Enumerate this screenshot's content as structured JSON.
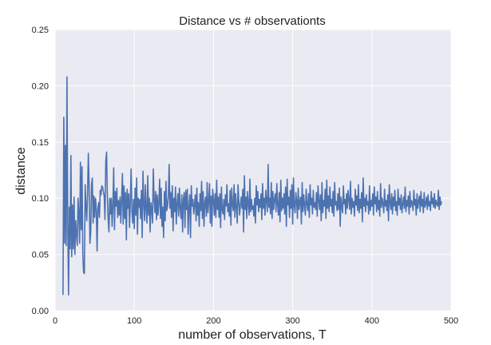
{
  "chart_data": {
    "type": "line",
    "title": "Distance vs # observationts",
    "xlabel": "number of observations, T",
    "ylabel": "distance",
    "xlim": [
      0,
      500
    ],
    "ylim": [
      0,
      0.25
    ],
    "xticks": [
      0,
      100,
      200,
      300,
      400,
      500
    ],
    "xtick_labels": [
      "0",
      "100",
      "200",
      "300",
      "400",
      "500"
    ],
    "yticks": [
      0,
      0.05,
      0.1,
      0.15,
      0.2,
      0.25
    ],
    "ytick_labels": [
      "0.00",
      "0.05",
      "0.10",
      "0.15",
      "0.20",
      "0.25"
    ],
    "grid": true,
    "background": "#eaeaf2",
    "line_color": "#4c72b0",
    "series": [
      {
        "x_start": 10,
        "x_step": 1,
        "values": [
          0.014,
          0.172,
          0.06,
          0.147,
          0.058,
          0.208,
          0.078,
          0.014,
          0.092,
          0.055,
          0.138,
          0.048,
          0.094,
          0.055,
          0.101,
          0.05,
          0.08,
          0.068,
          0.058,
          0.1,
          0.086,
          0.06,
          0.132,
          0.072,
          0.128,
          0.05,
          0.034,
          0.033,
          0.112,
          0.094,
          0.08,
          0.104,
          0.14,
          0.11,
          0.06,
          0.07,
          0.112,
          0.118,
          0.078,
          0.102,
          0.083,
          0.1,
          0.091,
          0.053,
          0.09,
          0.096,
          0.083,
          0.107,
          0.103,
          0.111,
          0.11,
          0.106,
          0.102,
          0.081,
          0.133,
          0.141,
          0.103,
          0.081,
          0.07,
          0.1,
          0.086,
          0.1,
          0.075,
          0.094,
          0.127,
          0.072,
          0.106,
          0.093,
          0.109,
          0.083,
          0.098,
          0.085,
          0.101,
          0.078,
          0.099,
          0.122,
          0.077,
          0.111,
          0.082,
          0.105,
          0.063,
          0.108,
          0.091,
          0.104,
          0.074,
          0.098,
          0.126,
          0.088,
          0.078,
          0.099,
          0.073,
          0.109,
          0.085,
          0.118,
          0.068,
          0.1,
          0.092,
          0.099,
          0.082,
          0.107,
          0.065,
          0.124,
          0.096,
          0.08,
          0.112,
          0.09,
          0.078,
          0.12,
          0.085,
          0.1,
          0.07,
          0.096,
          0.09,
          0.078,
          0.126,
          0.1,
          0.087,
          0.106,
          0.081,
          0.103,
          0.085,
          0.096,
          0.117,
          0.082,
          0.109,
          0.075,
          0.092,
          0.065,
          0.106,
          0.08,
          0.115,
          0.089,
          0.093,
          0.102,
          0.13,
          0.091,
          0.105,
          0.083,
          0.111,
          0.071,
          0.1,
          0.088,
          0.11,
          0.077,
          0.095,
          0.104,
          0.084,
          0.109,
          0.091,
          0.082,
          0.103,
          0.07,
          0.099,
          0.105,
          0.074,
          0.107,
          0.09,
          0.108,
          0.068,
          0.092,
          0.103,
          0.065,
          0.111,
          0.093,
          0.099,
          0.086,
          0.094,
          0.103,
          0.08,
          0.109,
          0.085,
          0.096,
          0.075,
          0.104,
          0.089,
          0.115,
          0.082,
          0.106,
          0.075,
          0.096,
          0.101,
          0.084,
          0.114,
          0.087,
          0.097,
          0.113,
          0.078,
          0.102,
          0.075,
          0.108,
          0.099,
          0.085,
          0.104,
          0.083,
          0.116,
          0.09,
          0.101,
          0.083,
          0.104,
          0.074,
          0.11,
          0.09,
          0.086,
          0.099,
          0.081,
          0.103,
          0.093,
          0.112,
          0.088,
          0.095,
          0.084,
          0.107,
          0.076,
          0.109,
          0.094,
          0.089,
          0.112,
          0.083,
          0.104,
          0.092,
          0.078,
          0.112,
          0.097,
          0.085,
          0.094,
          0.101,
          0.091,
          0.108,
          0.07,
          0.12,
          0.09,
          0.101,
          0.082,
          0.106,
          0.095,
          0.085,
          0.117,
          0.088,
          0.099,
          0.09,
          0.093,
          0.084,
          0.1,
          0.078,
          0.111,
          0.094,
          0.106,
          0.088,
          0.099,
          0.092,
          0.104,
          0.081,
          0.113,
          0.091,
          0.1,
          0.085,
          0.107,
          0.097,
          0.088,
          0.13,
          0.092,
          0.1,
          0.086,
          0.114,
          0.082,
          0.106,
          0.09,
          0.099,
          0.104,
          0.088,
          0.113,
          0.094,
          0.085,
          0.105,
          0.079,
          0.116,
          0.089,
          0.1,
          0.091,
          0.104,
          0.086,
          0.11,
          0.075,
          0.117,
          0.094,
          0.101,
          0.083,
          0.107,
          0.091,
          0.112,
          0.077,
          0.118,
          0.093,
          0.087,
          0.105,
          0.098,
          0.082,
          0.109,
          0.09,
          0.097,
          0.101,
          0.077,
          0.114,
          0.088,
          0.103,
          0.093,
          0.085,
          0.108,
          0.095,
          0.089,
          0.104,
          0.083,
          0.112,
          0.094,
          0.1,
          0.086,
          0.107,
          0.092,
          0.096,
          0.09,
          0.105,
          0.084,
          0.111,
          0.098,
          0.09,
          0.103,
          0.08,
          0.114,
          0.087,
          0.098,
          0.093,
          0.108,
          0.082,
          0.116,
          0.091,
          0.102,
          0.088,
          0.11,
          0.093,
          0.099,
          0.087,
          0.106,
          0.084,
          0.114,
          0.094,
          0.097,
          0.089,
          0.104,
          0.09,
          0.109,
          0.075,
          0.101,
          0.093,
          0.087,
          0.111,
          0.095,
          0.099,
          0.086,
          0.104,
          0.091,
          0.107,
          0.098,
          0.09,
          0.115,
          0.086,
          0.1,
          0.092,
          0.097,
          0.084,
          0.108,
          0.094,
          0.102,
          0.089,
          0.112,
          0.087,
          0.099,
          0.091,
          0.105,
          0.079,
          0.118,
          0.093,
          0.1,
          0.088,
          0.103,
          0.094,
          0.097,
          0.086,
          0.111,
          0.089,
          0.098,
          0.093,
          0.104,
          0.085,
          0.11,
          0.095,
          0.101,
          0.088,
          0.106,
          0.09,
          0.098,
          0.084,
          0.113,
          0.092,
          0.1,
          0.095,
          0.087,
          0.108,
          0.093,
          0.098,
          0.089,
          0.103,
          0.08,
          0.112,
          0.096,
          0.09,
          0.104,
          0.086,
          0.101,
          0.093,
          0.107,
          0.089,
          0.097,
          0.085,
          0.108,
          0.094,
          0.1,
          0.09,
          0.103,
          0.087,
          0.095,
          0.101,
          0.091,
          0.11,
          0.088,
          0.098,
          0.093,
          0.102,
          0.086,
          0.106,
          0.092,
          0.098,
          0.096,
          0.089,
          0.107,
          0.094,
          0.099,
          0.085,
          0.104,
          0.091,
          0.097,
          0.102,
          0.088,
          0.106,
          0.093,
          0.099,
          0.087,
          0.105,
          0.092,
          0.095,
          0.101,
          0.09,
          0.103,
          0.093,
          0.097,
          0.089,
          0.106,
          0.095,
          0.1,
          0.092,
          0.104,
          0.091,
          0.098,
          0.095,
          0.093,
          0.107,
          0.09,
          0.101,
          0.094,
          0.097
        ]
      }
    ]
  }
}
